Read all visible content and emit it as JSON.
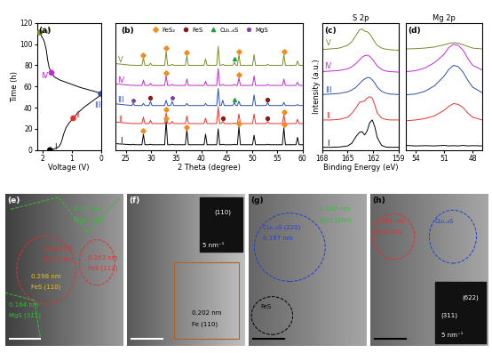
{
  "chart_data": [
    {
      "type": "line",
      "panel": "(a)",
      "x_label": "Voltage (V)",
      "y_label": "Time (h)",
      "xlim": [
        2.2,
        0
      ],
      "ylim": [
        0,
        120
      ],
      "xticks": [
        2,
        1,
        0
      ],
      "yticks": [
        0,
        20,
        40,
        60,
        80,
        100,
        120
      ],
      "series": [
        {
          "type": "line",
          "color": "#000000",
          "x": [
            1.75,
            1.6,
            1.45,
            1.38,
            1.33,
            1.28,
            1.2,
            1.08,
            0.95,
            0.8,
            0.55,
            0.3,
            0.1,
            0.0,
            0.05,
            0.3,
            0.7,
            1.1,
            1.4,
            1.6,
            1.7,
            1.78,
            1.83,
            1.88,
            1.95,
            2.05,
            2.1
          ],
          "values": [
            0,
            1,
            3,
            6,
            10,
            15,
            21,
            26,
            30,
            35,
            41,
            46,
            50,
            53,
            54,
            56,
            59,
            63,
            66,
            69,
            73,
            78,
            85,
            95,
            103,
            108,
            111
          ]
        },
        {
          "type": "scatter",
          "marker": "circle",
          "x": [
            1.75,
            0.95,
            0.0,
            1.7,
            2.1
          ],
          "values": [
            0,
            30,
            53,
            73,
            111
          ],
          "colors": [
            "#000000",
            "#e8322f",
            "#2a4fa8",
            "#c02ad0",
            "#7a8a2a"
          ]
        }
      ],
      "annotations": [
        {
          "text": "I",
          "x": 1.55,
          "y": 3,
          "color": "#000000"
        },
        {
          "text": "II",
          "x": 0.8,
          "y": 33,
          "color": "#e8322f"
        },
        {
          "text": "III",
          "x": 0.12,
          "y": 42,
          "color": "#2a4fa8"
        },
        {
          "text": "IV",
          "x": 1.92,
          "y": 70,
          "color": "#c02ad0"
        },
        {
          "text": "V",
          "x": 1.85,
          "y": 112,
          "color": "#7a8a2a"
        }
      ]
    },
    {
      "type": "line",
      "panel": "(b)",
      "x_label": "2 Theta (degree)",
      "tick_labels": "x",
      "xlim": [
        23,
        60
      ],
      "ylim": [
        0,
        6.0
      ],
      "xticks": [
        25,
        30,
        35,
        40,
        45,
        50,
        55,
        60
      ],
      "legend": "upper center",
      "x": [
        23,
        25,
        26.2,
        26.5,
        26.8,
        28.2,
        28.5,
        28.8,
        29.6,
        29.9,
        30.2,
        32.7,
        33.0,
        33.3,
        33.9,
        34.2,
        34.5,
        36.8,
        37.1,
        37.4,
        40.5,
        40.8,
        41.1,
        43.0,
        43.3,
        43.6,
        43.9,
        44.2,
        44.5,
        46.2,
        46.5,
        46.8,
        47.1,
        47.4,
        47.7,
        50.1,
        50.4,
        50.7,
        52.8,
        53.1,
        53.4,
        56.0,
        56.3,
        56.6,
        58.7,
        59.0,
        59.3,
        60
      ],
      "series": [
        {
          "type": "line",
          "color": "#000000",
          "values": [
            0.3,
            0.27,
            0.25,
            0.27,
            0.25,
            0.25,
            0.75,
            0.25,
            0.25,
            0.27,
            0.25,
            0.25,
            1.35,
            0.25,
            0.25,
            0.27,
            0.25,
            0.25,
            0.95,
            0.25,
            0.25,
            0.75,
            0.25,
            0.25,
            1.0,
            0.25,
            0.25,
            0.27,
            0.25,
            0.25,
            0.27,
            0.25,
            0.25,
            1.1,
            0.25,
            0.25,
            0.7,
            0.25,
            0.25,
            0.27,
            0.25,
            0.25,
            1.05,
            0.25,
            0.25,
            0.6,
            0.25,
            0.25
          ]
        },
        {
          "type": "line",
          "color": "#e8322f",
          "values": [
            1.32,
            1.28,
            1.25,
            1.26,
            1.25,
            1.25,
            1.55,
            1.25,
            1.25,
            1.4,
            1.25,
            1.25,
            1.75,
            1.25,
            1.25,
            1.35,
            1.25,
            1.25,
            1.6,
            1.25,
            1.25,
            1.5,
            1.25,
            1.25,
            2.05,
            1.25,
            1.25,
            1.35,
            1.25,
            1.25,
            1.27,
            1.25,
            1.25,
            1.7,
            1.25,
            1.25,
            1.7,
            1.25,
            1.25,
            1.35,
            1.25,
            1.25,
            1.65,
            1.25,
            1.25,
            1.45,
            1.25,
            1.25
          ]
        },
        {
          "type": "line",
          "color": "#2a4fa8",
          "values": [
            2.18,
            2.13,
            2.1,
            2.2,
            2.1,
            2.1,
            2.2,
            2.1,
            2.1,
            2.3,
            2.1,
            2.1,
            2.35,
            2.1,
            2.1,
            2.3,
            2.1,
            2.1,
            2.2,
            2.1,
            2.1,
            2.2,
            2.1,
            2.1,
            2.9,
            2.1,
            2.1,
            2.35,
            2.1,
            2.1,
            2.25,
            2.1,
            2.1,
            2.3,
            2.1,
            2.1,
            2.6,
            2.1,
            2.1,
            2.25,
            2.1,
            2.1,
            2.25,
            2.1,
            2.1,
            2.15,
            2.1,
            2.1
          ]
        },
        {
          "type": "line",
          "color": "#c02ad0",
          "values": [
            3.12,
            3.08,
            3.05,
            3.06,
            3.05,
            3.05,
            3.3,
            3.05,
            3.05,
            3.15,
            3.05,
            3.05,
            3.5,
            3.05,
            3.05,
            3.1,
            3.05,
            3.05,
            3.35,
            3.05,
            3.05,
            3.25,
            3.05,
            3.05,
            3.85,
            3.05,
            3.05,
            3.1,
            3.05,
            3.05,
            3.1,
            3.05,
            3.05,
            3.4,
            3.05,
            3.05,
            3.5,
            3.05,
            3.05,
            3.1,
            3.05,
            3.05,
            3.35,
            3.05,
            3.05,
            3.2,
            3.05,
            3.05
          ]
        },
        {
          "type": "line",
          "color": "#7a8a2a",
          "values": [
            4.08,
            4.03,
            4.0,
            4.01,
            4.0,
            4.0,
            4.35,
            4.0,
            4.0,
            4.1,
            4.0,
            4.0,
            4.65,
            4.0,
            4.0,
            4.05,
            4.0,
            4.0,
            4.45,
            4.0,
            4.0,
            4.3,
            4.0,
            4.0,
            4.9,
            4.0,
            4.0,
            4.05,
            4.0,
            4.0,
            4.15,
            4.0,
            4.0,
            4.5,
            4.0,
            4.0,
            4.5,
            4.0,
            4.0,
            4.05,
            4.0,
            4.0,
            4.5,
            4.0,
            4.0,
            4.2,
            4.0,
            4.0
          ]
        },
        {
          "type": "scatter",
          "name": "FeS₂",
          "marker": "diamond",
          "color": "#f28c1e",
          "x": [
            28.5,
            33.0,
            37.1,
            47.4,
            56.3,
            33.0,
            56.3,
            33.0,
            47.4,
            28.5,
            33.0,
            37.1,
            47.4,
            56.3
          ],
          "values": [
            0.9,
            1.5,
            1.1,
            1.25,
            1.2,
            1.9,
            1.8,
            3.65,
            3.55,
            4.5,
            4.8,
            4.6,
            4.65,
            4.65
          ]
        },
        {
          "type": "scatter",
          "name": "FeS",
          "marker": "circle",
          "color": "#8b1a1a",
          "x": [
            29.9,
            53.1,
            44.2,
            53.1
          ],
          "values": [
            2.45,
            2.4,
            1.5,
            1.5
          ]
        },
        {
          "type": "scatter",
          "name": "Cu₁.₈S",
          "marker": "triangle",
          "color": "#1f9e3a",
          "x": [
            46.5,
            46.5
          ],
          "values": [
            4.3,
            2.4
          ]
        },
        {
          "type": "scatter",
          "name": "MgS",
          "marker": "pentagon",
          "color": "#7b3fa0",
          "x": [
            34.2,
            26.5
          ],
          "values": [
            2.45,
            2.35
          ]
        }
      ],
      "annotations": [
        {
          "text": "I",
          "x": 24,
          "y": 0.45,
          "color": "#000000"
        },
        {
          "text": "II",
          "x": 24,
          "y": 1.45,
          "color": "#e8322f"
        },
        {
          "text": "III",
          "x": 24,
          "y": 2.35,
          "color": "#2a4fa8"
        },
        {
          "text": "IV",
          "x": 24,
          "y": 3.3,
          "color": "#c02ad0"
        },
        {
          "text": "V",
          "x": 24,
          "y": 4.25,
          "color": "#7a8a2a"
        }
      ]
    },
    {
      "type": "line",
      "panel": "(c)",
      "title": "S 2p",
      "x_label": "Binding Energy (eV)",
      "y_label": "Intensity (a.u.)",
      "tick_labels": "x",
      "xlim": [
        168,
        159
      ],
      "ylim": [
        -0.05,
        4.6
      ],
      "xticks": [
        168,
        165,
        162,
        159
      ],
      "x": [
        168,
        167,
        166,
        165,
        164.5,
        164,
        163.6,
        163.3,
        163,
        162.7,
        162.4,
        162.1,
        161.8,
        161.5,
        161,
        160.5,
        160,
        159
      ],
      "series": [
        {
          "type": "line",
          "color": "#000000",
          "values": [
            0.05,
            0.05,
            0.06,
            0.1,
            0.2,
            0.45,
            0.6,
            0.62,
            0.5,
            0.65,
            0.95,
            1.05,
            0.8,
            0.4,
            0.12,
            0.06,
            0.05,
            0.05
          ]
        },
        {
          "type": "line",
          "color": "#e8322f",
          "values": [
            1.05,
            1.05,
            1.07,
            1.15,
            1.3,
            1.5,
            1.7,
            1.72,
            1.75,
            1.85,
            1.9,
            1.85,
            1.6,
            1.3,
            1.12,
            1.07,
            1.05,
            1.05
          ]
        },
        {
          "type": "line",
          "color": "#2a4fa8",
          "values": [
            1.98,
            2.0,
            2.02,
            2.08,
            2.15,
            2.25,
            2.38,
            2.48,
            2.55,
            2.6,
            2.6,
            2.52,
            2.4,
            2.25,
            2.1,
            2.03,
            2.0,
            1.98
          ]
        },
        {
          "type": "line",
          "color": "#c02ad0",
          "values": [
            2.82,
            2.84,
            2.86,
            2.92,
            3.0,
            3.12,
            3.25,
            3.35,
            3.4,
            3.42,
            3.38,
            3.28,
            3.15,
            3.02,
            2.9,
            2.84,
            2.82,
            2.8
          ]
        },
        {
          "type": "line",
          "color": "#7a8a2a",
          "values": [
            3.63,
            3.65,
            3.68,
            3.78,
            3.92,
            4.15,
            4.35,
            4.38,
            4.3,
            4.28,
            4.2,
            4.05,
            3.9,
            3.78,
            3.68,
            3.64,
            3.62,
            3.6
          ]
        }
      ],
      "annotations": [
        {
          "text": "I",
          "x": 167.3,
          "y": 0.2,
          "color": "#000000"
        },
        {
          "text": "II",
          "x": 167.3,
          "y": 1.2,
          "color": "#e8322f"
        },
        {
          "text": "III",
          "x": 167.3,
          "y": 2.15,
          "color": "#2a4fa8"
        },
        {
          "text": "IV",
          "x": 167.3,
          "y": 3.0,
          "color": "#c02ad0"
        },
        {
          "text": "V",
          "x": 167.3,
          "y": 3.85,
          "color": "#7a8a2a"
        }
      ]
    },
    {
      "type": "line",
      "panel": "(d)",
      "title": "Mg 2p",
      "tick_labels": "x",
      "xlim": [
        55,
        47
      ],
      "ylim": [
        -0.05,
        4.6
      ],
      "xticks": [
        54,
        51,
        48
      ],
      "x": [
        55,
        54,
        53,
        52,
        51,
        50.5,
        50,
        49.5,
        49,
        48.5,
        48,
        47
      ],
      "series": [
        {
          "type": "line",
          "color": "#000000",
          "values": [
            0.12,
            0.1,
            0.11,
            0.1,
            0.12,
            0.1,
            0.11,
            0.1,
            0.12,
            0.1,
            0.11,
            0.1
          ]
        },
        {
          "type": "line",
          "color": "#e8322f",
          "values": [
            1.02,
            1.05,
            1.1,
            1.2,
            1.4,
            1.55,
            1.65,
            1.62,
            1.5,
            1.3,
            1.15,
            1.05
          ]
        },
        {
          "type": "line",
          "color": "#2a4fa8",
          "values": [
            1.97,
            2.0,
            2.1,
            2.3,
            2.65,
            2.9,
            3.05,
            3.0,
            2.8,
            2.5,
            2.25,
            2.05
          ]
        },
        {
          "type": "line",
          "color": "#c02ad0",
          "values": [
            2.82,
            2.85,
            2.95,
            3.15,
            3.45,
            3.7,
            3.82,
            3.78,
            3.6,
            3.3,
            3.05,
            2.88
          ]
        },
        {
          "type": "line",
          "color": "#7a8a2a",
          "values": [
            3.65,
            3.66,
            3.68,
            3.72,
            3.8,
            3.85,
            3.88,
            3.86,
            3.8,
            3.74,
            3.68,
            3.65
          ]
        }
      ]
    }
  ],
  "images": [
    {
      "panel": "(e)",
      "texts": [
        {
          "text": "FeS (114)",
          "color": "#e03030"
        },
        {
          "text": "0.209 nm",
          "color": "#e03030"
        },
        {
          "text": "0.298 nm",
          "color": "#f0c020"
        },
        {
          "text": "FeS (110)",
          "color": "#f0c020"
        },
        {
          "text": "0.184 nm",
          "color": "#30c030"
        },
        {
          "text": "MgS (220)",
          "color": "#30c030"
        },
        {
          "text": "0.164 nm",
          "color": "#30c030"
        },
        {
          "text": "MgS (311)",
          "color": "#30c030"
        },
        {
          "text": "0.263 nm",
          "color": "#e03030"
        },
        {
          "text": "FeS (112)",
          "color": "#e03030"
        }
      ]
    },
    {
      "panel": "(f)",
      "texts": [
        {
          "text": "(110)",
          "color": "#ffffff"
        },
        {
          "text": "5 nm⁻¹",
          "color": "#ffffff"
        },
        {
          "text": "0.202 nm",
          "color": "#000000"
        },
        {
          "text": "Fe (110)",
          "color": "#000000"
        }
      ]
    },
    {
      "panel": "(g)",
      "texts": [
        {
          "text": "Cu₁.₈S (220)",
          "color": "#2040d0"
        },
        {
          "text": "0.197 nm",
          "color": "#2040d0"
        },
        {
          "text": "0.260 nm",
          "color": "#30c030"
        },
        {
          "text": "MgS (200)",
          "color": "#30c030"
        },
        {
          "text": "FeS",
          "color": "#000000"
        }
      ]
    },
    {
      "panel": "(h)",
      "texts": [
        {
          "text": "0.180 nm",
          "color": "#e03030"
        },
        {
          "text": "Cu (200)",
          "color": "#e03030"
        },
        {
          "text": "Cu₁.₈S",
          "color": "#2040d0"
        },
        {
          "text": "(622)",
          "color": "#ffffff"
        },
        {
          "text": "(311)",
          "color": "#ffffff"
        },
        {
          "text": "5 nm⁻¹",
          "color": "#ffffff"
        }
      ]
    }
  ]
}
